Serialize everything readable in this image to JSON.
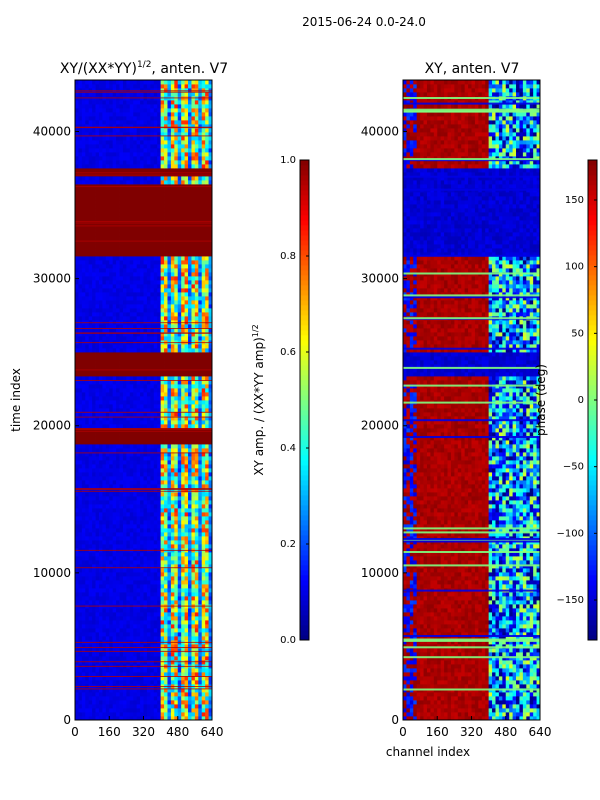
{
  "suptitle": "2015-06-24 0.0-24.0",
  "chart_data": [
    {
      "type": "heatmap",
      "title": "XY/(XX*YY)",
      "title_exponent": "1/2",
      "title_suffix": ", anten. V7",
      "xlabel": "",
      "ylabel": "time index",
      "xlim": [
        0,
        640
      ],
      "ylim": [
        0,
        43500
      ],
      "xticks": [
        0,
        160,
        320,
        480,
        640
      ],
      "yticks": [
        0,
        10000,
        20000,
        30000,
        40000
      ],
      "grid": false,
      "colorbar": {
        "label": "XY amp. / (XX*YY amp)",
        "label_exponent": "1/2",
        "range": [
          0.0,
          1.0
        ],
        "ticks": [
          "0.0",
          "0.2",
          "0.4",
          "0.6",
          "0.8",
          "1.0"
        ],
        "tick_values": [
          0.0,
          0.2,
          0.4,
          0.6,
          0.8,
          1.0
        ],
        "colormap": "jet"
      },
      "base_value": 0.1,
      "saturated_bands": [
        {
          "from": 18800,
          "to": 19800,
          "value": 1.0
        },
        {
          "from": 23500,
          "to": 25000,
          "value": 1.0
        },
        {
          "from": 31500,
          "to": 36500,
          "value": 1.0
        },
        {
          "from": 37000,
          "to": 37500,
          "value": 1.0
        }
      ],
      "structured_channel_range": [
        400,
        640
      ]
    },
    {
      "type": "heatmap",
      "title": "XY, anten. V7",
      "xlabel": "channel index",
      "ylabel": "",
      "xlim": [
        0,
        640
      ],
      "ylim": [
        0,
        43500
      ],
      "xticks": [
        0,
        160,
        320,
        480,
        640
      ],
      "yticks": [
        0,
        10000,
        20000,
        30000,
        40000
      ],
      "grid": false,
      "colorbar": {
        "label": "phase (deg)",
        "range": [
          -180,
          180
        ],
        "ticks": [
          "−150",
          "−100",
          "−50",
          "0",
          "50",
          "100",
          "150"
        ],
        "tick_values": [
          -150,
          -100,
          -50,
          0,
          50,
          100,
          150
        ],
        "colormap": "jet"
      },
      "base_phase_low_channels": 165,
      "base_phase_high_channels": -120,
      "phase_transition_channel": 400,
      "low_phase_bands": [
        {
          "from": 23500,
          "to": 25000
        },
        {
          "from": 31500,
          "to": 37500
        }
      ]
    }
  ]
}
